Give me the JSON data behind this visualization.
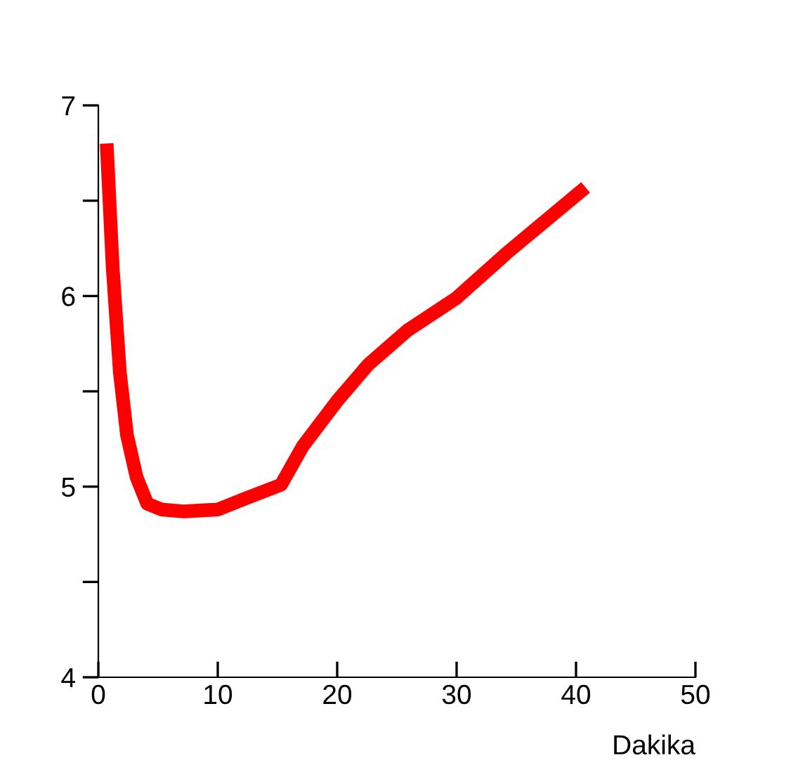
{
  "chart_data": {
    "type": "line",
    "xlabel": "Dakika",
    "x": [
      0.7,
      1.2,
      1.8,
      2.4,
      3.2,
      4.1,
      5.3,
      7.1,
      10,
      12.4,
      15.3,
      17.1,
      20,
      22.6,
      25.9,
      30,
      34.1,
      40.8
    ],
    "series": [
      {
        "color": "#ff0000",
        "values": [
          6.8,
          6.15,
          5.6,
          5.27,
          5.05,
          4.91,
          4.88,
          4.87,
          4.88,
          4.94,
          5.01,
          5.21,
          5.45,
          5.64,
          5.82,
          5.99,
          6.22,
          6.57
        ]
      }
    ],
    "xlim": [
      0,
      50
    ],
    "xticks": [
      0,
      10,
      20,
      30,
      40,
      50
    ],
    "ylim": [
      4,
      7
    ],
    "yticks": [
      4,
      {
        "value": 4.5,
        "label": null
      },
      5,
      {
        "value": 5.5,
        "label": null
      },
      6,
      {
        "value": 6.5,
        "label": null
      },
      7
    ],
    "grid": false,
    "marker": "none",
    "line_style": "solid"
  }
}
